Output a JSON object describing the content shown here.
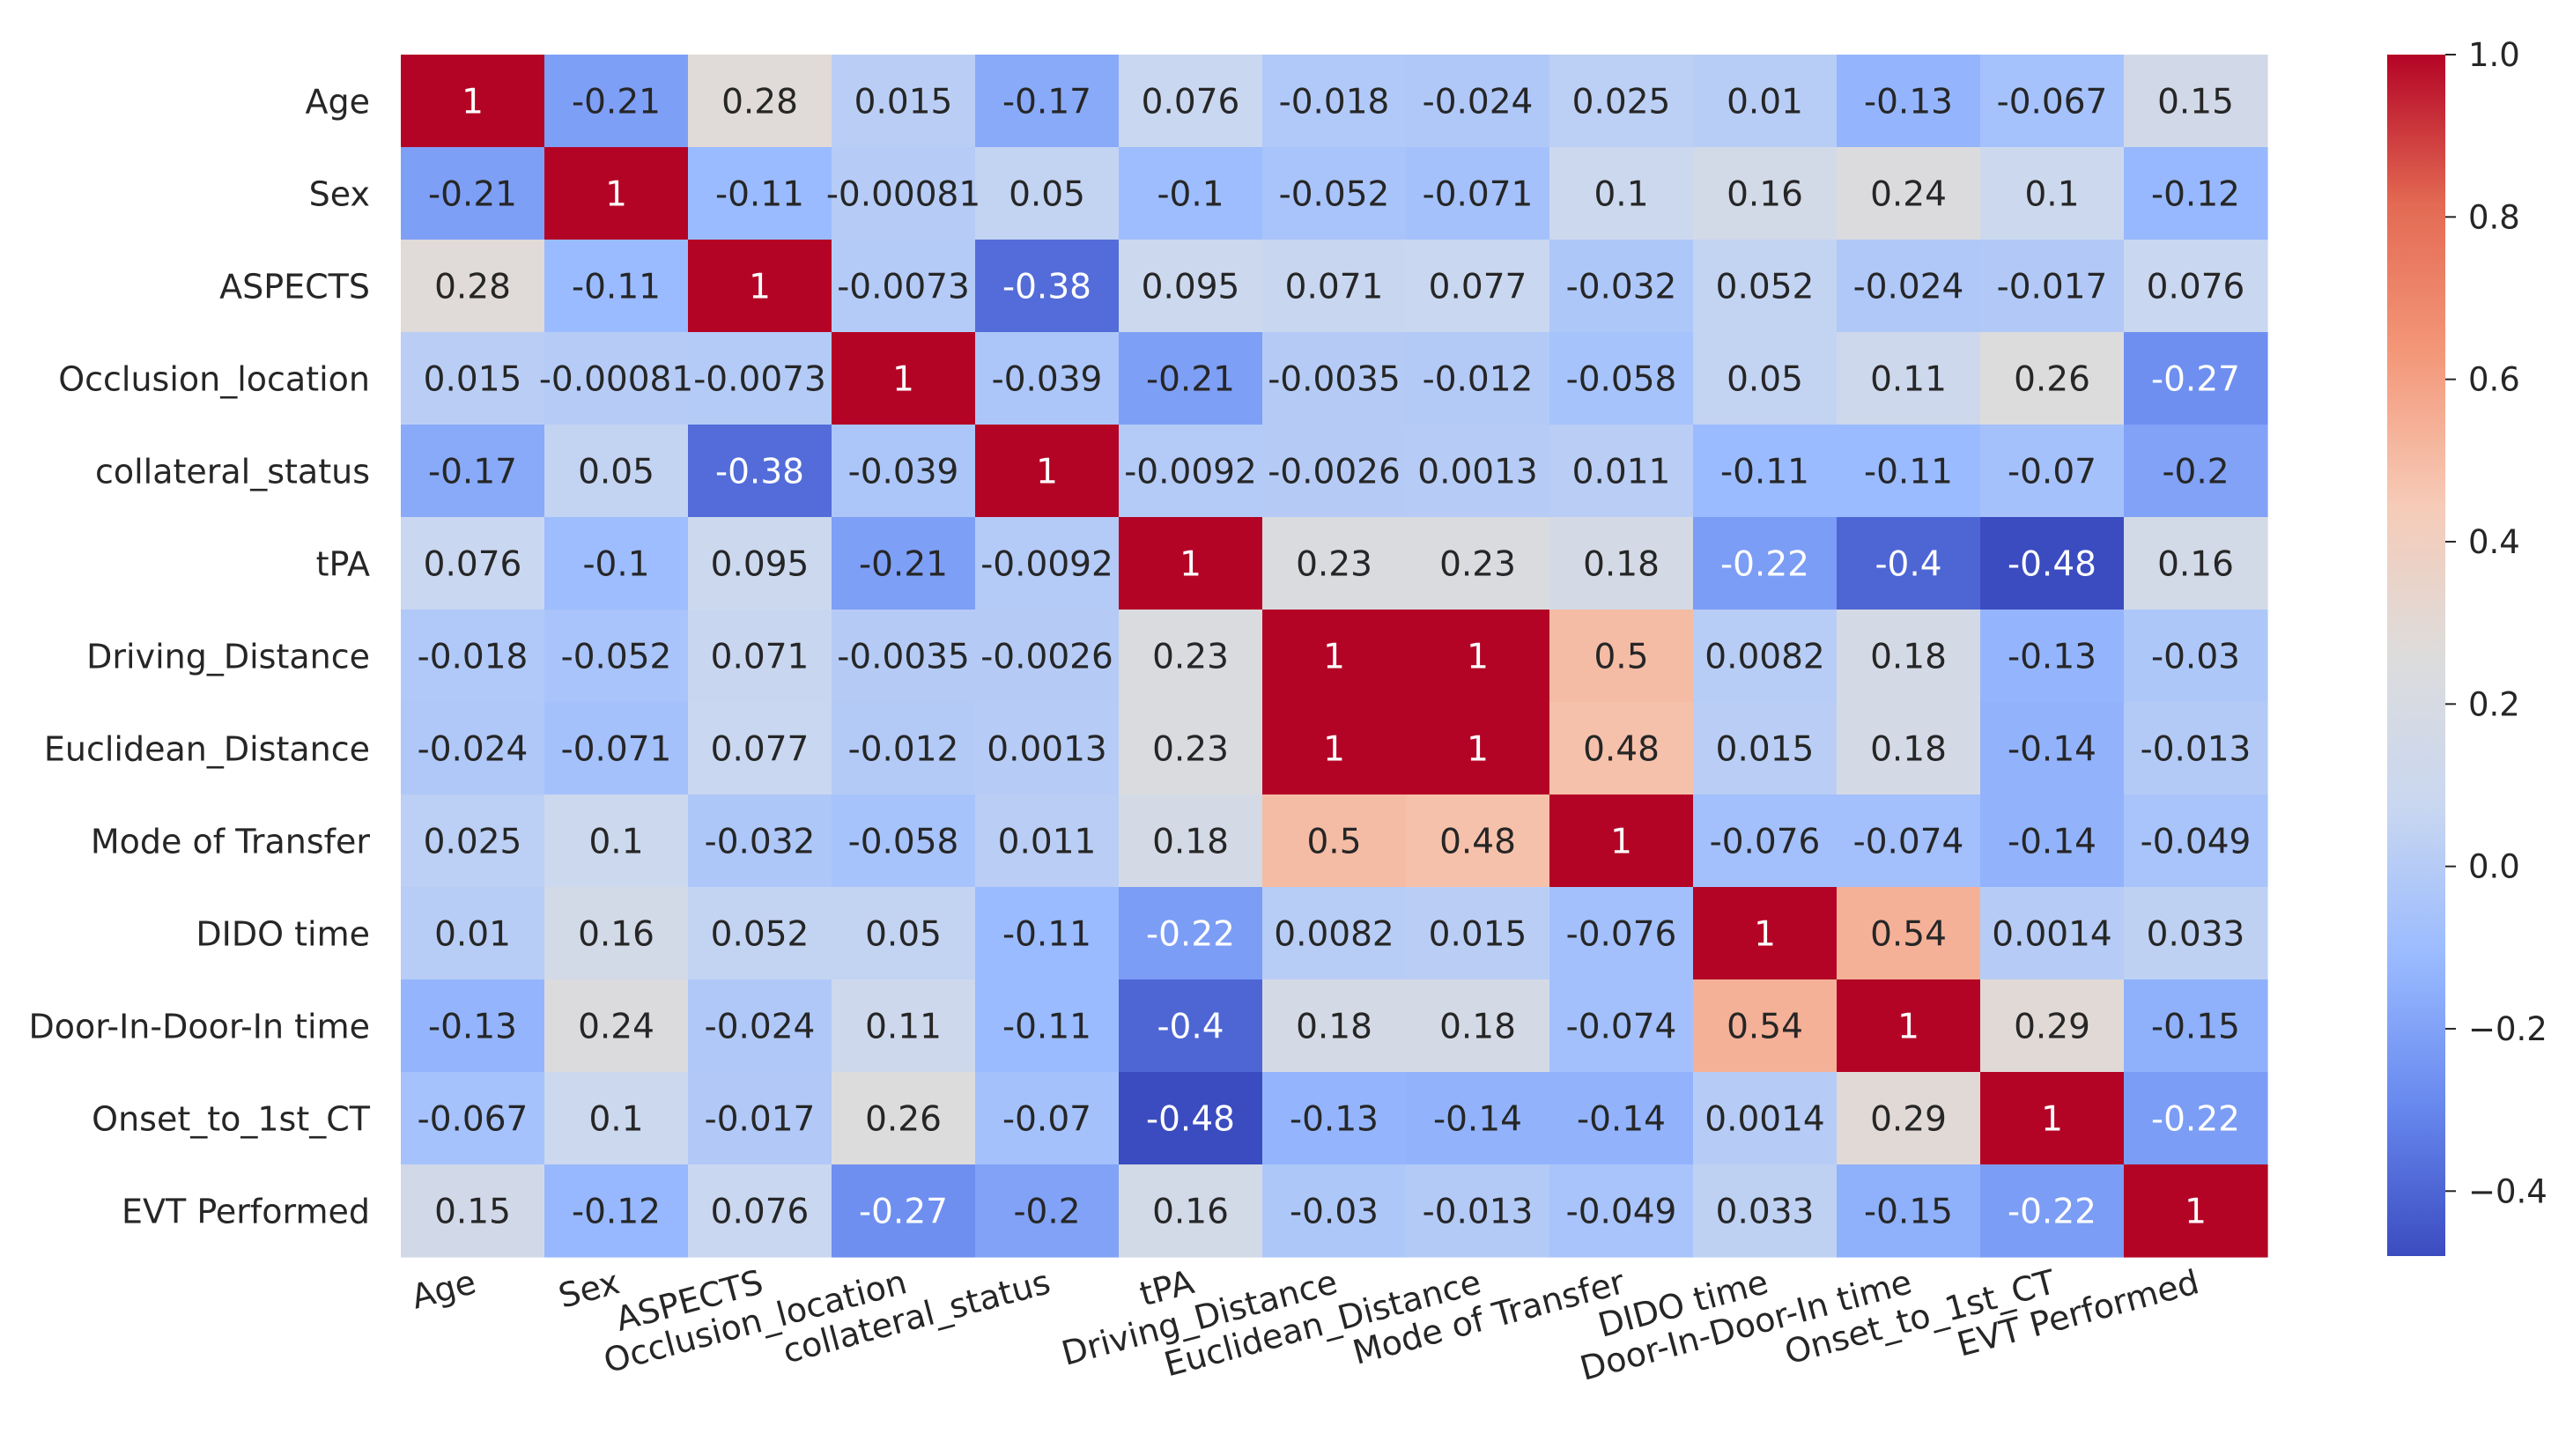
{
  "chart_data": {
    "type": "heatmap",
    "title": "",
    "variables": [
      "Age",
      "Sex",
      "ASPECTS",
      "Occlusion_location",
      "collateral_status",
      "tPA",
      "Driving_Distance",
      "Euclidean_Distance",
      "Mode of Transfer",
      "DIDO time",
      "Door-In-Door-In time",
      "Onset_to_1st_CT",
      "EVT Performed"
    ],
    "values": [
      [
        1,
        -0.21,
        0.28,
        0.015,
        -0.17,
        0.076,
        -0.018,
        -0.024,
        0.025,
        0.01,
        -0.13,
        -0.067,
        0.15
      ],
      [
        -0.21,
        1,
        -0.11,
        -0.00081,
        0.05,
        -0.1,
        -0.052,
        -0.071,
        0.1,
        0.16,
        0.24,
        0.1,
        -0.12
      ],
      [
        0.28,
        -0.11,
        1,
        -0.0073,
        -0.38,
        0.095,
        0.071,
        0.077,
        -0.032,
        0.052,
        -0.024,
        -0.017,
        0.076
      ],
      [
        0.015,
        -0.00081,
        -0.0073,
        1,
        -0.039,
        -0.21,
        -0.0035,
        -0.012,
        -0.058,
        0.05,
        0.11,
        0.26,
        -0.27
      ],
      [
        -0.17,
        0.05,
        -0.38,
        -0.039,
        1,
        -0.0092,
        -0.0026,
        0.0013,
        0.011,
        -0.11,
        -0.11,
        -0.07,
        -0.2
      ],
      [
        0.076,
        -0.1,
        0.095,
        -0.21,
        -0.0092,
        1,
        0.23,
        0.23,
        0.18,
        -0.22,
        -0.4,
        -0.48,
        0.16
      ],
      [
        -0.018,
        -0.052,
        0.071,
        -0.0035,
        -0.0026,
        0.23,
        1,
        1,
        0.5,
        0.0082,
        0.18,
        -0.13,
        -0.03
      ],
      [
        -0.024,
        -0.071,
        0.077,
        -0.012,
        0.0013,
        0.23,
        1,
        1,
        0.48,
        0.015,
        0.18,
        -0.14,
        -0.013
      ],
      [
        0.025,
        0.1,
        -0.032,
        -0.058,
        0.011,
        0.18,
        0.5,
        0.48,
        1,
        -0.076,
        -0.074,
        -0.14,
        -0.049
      ],
      [
        0.01,
        0.16,
        0.052,
        0.05,
        -0.11,
        -0.22,
        0.0082,
        0.015,
        -0.076,
        1,
        0.54,
        0.0014,
        0.033
      ],
      [
        -0.13,
        0.24,
        -0.024,
        0.11,
        -0.11,
        -0.4,
        0.18,
        0.18,
        -0.074,
        0.54,
        1,
        0.29,
        -0.15
      ],
      [
        -0.067,
        0.1,
        -0.017,
        0.26,
        -0.07,
        -0.48,
        -0.13,
        -0.14,
        -0.14,
        0.0014,
        0.29,
        1,
        -0.22
      ],
      [
        0.15,
        -0.12,
        0.076,
        -0.27,
        -0.2,
        0.16,
        -0.03,
        -0.013,
        -0.049,
        0.033,
        -0.15,
        -0.22,
        1
      ]
    ],
    "cell_labels": [
      [
        "1",
        "-0.21",
        "0.28",
        "0.015",
        "-0.17",
        "0.076",
        "-0.018",
        "-0.024",
        "0.025",
        "0.01",
        "-0.13",
        "-0.067",
        "0.15"
      ],
      [
        "-0.21",
        "1",
        "-0.11",
        "-0.00081",
        "0.05",
        "-0.1",
        "-0.052",
        "-0.071",
        "0.1",
        "0.16",
        "0.24",
        "0.1",
        "-0.12"
      ],
      [
        "0.28",
        "-0.11",
        "1",
        "-0.0073",
        "-0.38",
        "0.095",
        "0.071",
        "0.077",
        "-0.032",
        "0.052",
        "-0.024",
        "-0.017",
        "0.076"
      ],
      [
        "0.015",
        "-0.00081",
        "-0.0073",
        "1",
        "-0.039",
        "-0.21",
        "-0.0035",
        "-0.012",
        "-0.058",
        "0.05",
        "0.11",
        "0.26",
        "-0.27"
      ],
      [
        "-0.17",
        "0.05",
        "-0.38",
        "-0.039",
        "1",
        "-0.0092",
        "-0.0026",
        "0.0013",
        "0.011",
        "-0.11",
        "-0.11",
        "-0.07",
        "-0.2"
      ],
      [
        "0.076",
        "-0.1",
        "0.095",
        "-0.21",
        "-0.0092",
        "1",
        "0.23",
        "0.23",
        "0.18",
        "-0.22",
        "-0.4",
        "-0.48",
        "0.16"
      ],
      [
        "-0.018",
        "-0.052",
        "0.071",
        "-0.0035",
        "-0.0026",
        "0.23",
        "1",
        "1",
        "0.5",
        "0.0082",
        "0.18",
        "-0.13",
        "-0.03"
      ],
      [
        "-0.024",
        "-0.071",
        "0.077",
        "-0.012",
        "0.0013",
        "0.23",
        "1",
        "1",
        "0.48",
        "0.015",
        "0.18",
        "-0.14",
        "-0.013"
      ],
      [
        "0.025",
        "0.1",
        "-0.032",
        "-0.058",
        "0.011",
        "0.18",
        "0.5",
        "0.48",
        "1",
        "-0.076",
        "-0.074",
        "-0.14",
        "-0.049"
      ],
      [
        "0.01",
        "0.16",
        "0.052",
        "0.05",
        "-0.11",
        "-0.22",
        "0.0082",
        "0.015",
        "-0.076",
        "1",
        "0.54",
        "0.0014",
        "0.033"
      ],
      [
        "-0.13",
        "0.24",
        "-0.024",
        "0.11",
        "-0.11",
        "-0.4",
        "0.18",
        "0.18",
        "-0.074",
        "0.54",
        "1",
        "0.29",
        "-0.15"
      ],
      [
        "-0.067",
        "0.1",
        "-0.017",
        "0.26",
        "-0.07",
        "-0.48",
        "-0.13",
        "-0.14",
        "-0.14",
        "0.0014",
        "0.29",
        "1",
        "-0.22"
      ],
      [
        "0.15",
        "-0.12",
        "0.076",
        "-0.27",
        "-0.2",
        "0.16",
        "-0.03",
        "-0.013",
        "-0.049",
        "0.033",
        "-0.15",
        "-0.22",
        "1"
      ]
    ],
    "colormap": "coolwarm",
    "color_range": [
      -0.48,
      1.0
    ],
    "colorbar_ticks": [
      {
        "value": 1.0,
        "label": "1.0"
      },
      {
        "value": 0.8,
        "label": "0.8"
      },
      {
        "value": 0.6,
        "label": "0.6"
      },
      {
        "value": 0.4,
        "label": "0.4"
      },
      {
        "value": 0.2,
        "label": "0.2"
      },
      {
        "value": 0.0,
        "label": "0.0"
      },
      {
        "value": -0.2,
        "label": "−0.2"
      },
      {
        "value": -0.4,
        "label": "−0.4"
      }
    ],
    "colors": {
      "coolwarm_stops": [
        "#3b4cc0",
        "#6788ee",
        "#9abbff",
        "#c9d7f0",
        "#dddcdc",
        "#f6cbb7",
        "#f4987a",
        "#e36a53",
        "#b40426"
      ],
      "label_dark": "#262626",
      "label_light": "#ffffff",
      "background": "#ffffff"
    }
  }
}
